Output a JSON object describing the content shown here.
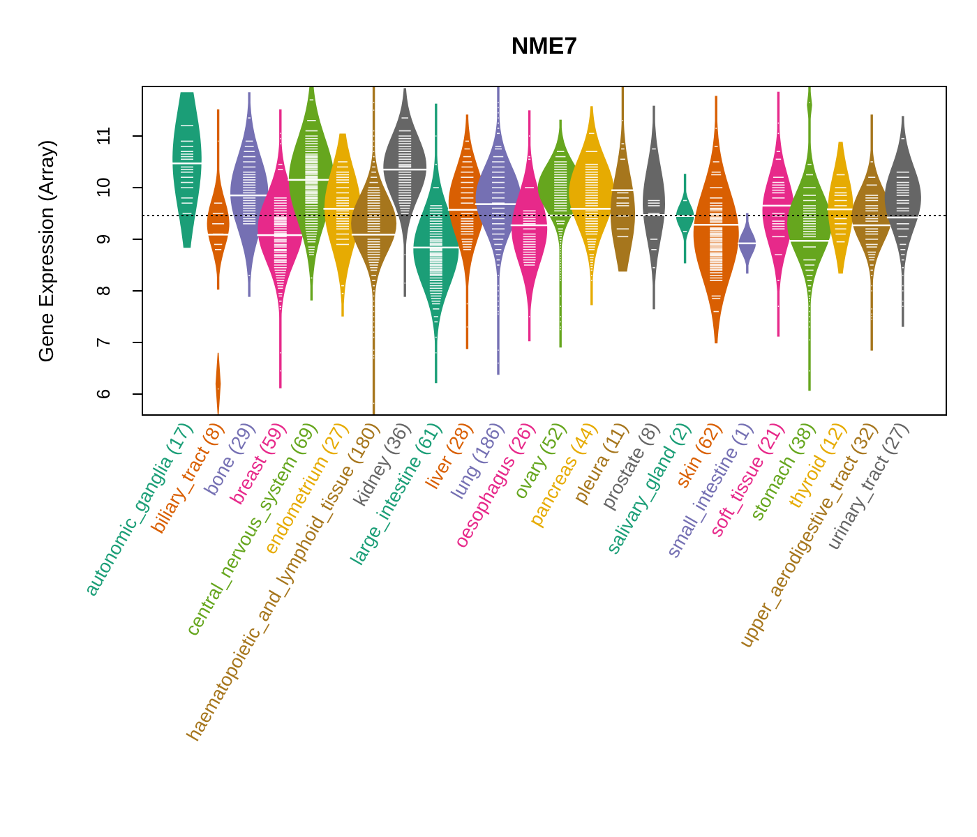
{
  "chart_data": {
    "type": "beanplot",
    "title": "NME7",
    "xlabel": "",
    "ylabel": "Gene Expression (Array)",
    "ylim": [
      5.6,
      12.0
    ],
    "yticks": [
      6,
      7,
      8,
      9,
      10,
      11
    ],
    "reference_line": 9.46,
    "grid": false,
    "legend": "none",
    "groups": [
      {
        "name": "autonomic_ganglia",
        "n": 17,
        "label": "autonomic_ganglia (17)",
        "color": "#1B9E77",
        "min": 8.84,
        "max": 11.84,
        "median": 10.47,
        "mode": 10.55,
        "spread": 1.0,
        "points": [
          11.2,
          10.9,
          10.8,
          10.7,
          10.65,
          10.55,
          10.47,
          10.4,
          10.35,
          10.3,
          9.8,
          9.7,
          9.5,
          10.2,
          10.1,
          10.0,
          10.6
        ]
      },
      {
        "name": "biliary_tract",
        "n": 8,
        "label": "biliary_tract (8)",
        "color": "#D95F02",
        "min": 8.03,
        "max": 11.51,
        "median": 9.09,
        "mode": 9.3,
        "spread": 0.45,
        "points": [
          10.9,
          9.7,
          9.5,
          9.3,
          9.1,
          8.9,
          8.8,
          6.1
        ],
        "extra_segment": [
          5.6,
          6.8
        ]
      },
      {
        "name": "bone",
        "n": 29,
        "label": "bone (29)",
        "color": "#7570B3",
        "min": 7.89,
        "max": 11.84,
        "median": 9.85,
        "mode": 9.9,
        "spread": 0.7,
        "points": [
          11.35,
          10.9,
          10.8,
          10.6,
          10.4,
          10.25,
          10.15,
          10.0,
          9.95,
          9.85,
          9.8,
          9.7,
          9.6,
          9.55,
          9.5,
          9.45,
          9.3,
          8.3,
          10.7,
          10.3,
          10.1,
          9.9,
          9.75,
          9.65,
          9.4,
          10.5,
          10.2,
          9.35,
          10.05
        ]
      },
      {
        "name": "breast",
        "n": 59,
        "label": "breast (59)",
        "color": "#E7298A",
        "min": 6.12,
        "max": 11.51,
        "median": 9.08,
        "mode": 9.2,
        "spread": 0.65,
        "points": [
          11.05,
          10.95,
          10.85,
          10.45,
          10.35,
          9.8,
          9.7,
          9.6,
          9.5,
          9.45,
          9.4,
          9.35,
          9.3,
          9.25,
          9.2,
          9.15,
          9.08,
          9.0,
          8.9,
          8.85,
          8.8,
          8.7,
          8.6,
          8.5,
          8.4,
          8.3,
          8.2,
          8.1,
          7.95,
          7.8,
          7.7,
          7.65,
          6.8,
          6.45,
          9.55,
          9.65,
          9.75,
          9.1,
          8.95,
          8.75,
          8.65,
          8.55,
          8.45,
          8.35,
          8.25,
          8.15,
          8.05,
          7.9,
          9.28,
          9.33,
          9.38,
          9.42,
          9.12,
          9.05,
          8.98,
          8.88,
          8.78,
          8.68,
          8.58
        ]
      },
      {
        "name": "central_nervous_system",
        "n": 69,
        "label": "central_nervous_system (69)",
        "color": "#66A61E",
        "min": 7.82,
        "max": 11.96,
        "median": 10.15,
        "mode": 10.15,
        "spread": 0.8,
        "points": [
          11.7,
          11.3,
          10.9,
          10.8,
          10.75,
          10.7,
          10.6,
          10.55,
          10.5,
          10.45,
          10.4,
          10.35,
          10.3,
          10.25,
          10.2,
          10.15,
          10.1,
          10.05,
          10.0,
          9.95,
          9.9,
          9.85,
          9.8,
          9.75,
          9.7,
          9.6,
          9.5,
          9.45,
          9.4,
          9.3,
          9.2,
          8.8,
          8.7,
          8.25,
          10.65,
          10.62,
          10.58,
          10.52,
          10.48,
          10.42,
          10.38,
          10.32,
          10.28,
          10.22,
          10.18,
          10.12,
          10.08,
          10.02,
          9.98,
          9.92,
          9.88,
          9.82,
          9.78,
          9.72,
          9.65,
          9.55,
          9.35,
          9.25,
          9.15,
          9.1,
          11.0,
          11.1,
          10.85,
          10.95,
          9.05,
          8.95,
          8.85,
          8.75,
          9.0
        ]
      },
      {
        "name": "endometrium",
        "n": 27,
        "label": "endometrium (27)",
        "color": "#E6AB02",
        "min": 7.51,
        "max": 11.04,
        "median": 9.59,
        "mode": 9.6,
        "spread": 0.75,
        "points": [
          10.5,
          10.4,
          10.3,
          10.2,
          10.1,
          10.0,
          9.9,
          9.8,
          9.75,
          9.7,
          9.59,
          9.5,
          9.45,
          9.4,
          9.35,
          9.3,
          9.2,
          9.1,
          9.0,
          8.9,
          8.1,
          7.95,
          10.25,
          10.15,
          9.65,
          9.55,
          9.25
        ]
      },
      {
        "name": "haematopoietic_and_lymphoid_tissue",
        "n": 180,
        "label": "haematopoietic_and_lymphoid_tissue (180)",
        "color": "#A6761D",
        "min": 5.6,
        "max": 11.96,
        "median": 9.09,
        "mode": 9.3,
        "spread": 0.55,
        "points": [
          11.65,
          11.5,
          11.1,
          11.0,
          10.9,
          10.8,
          10.7,
          10.6,
          10.5,
          10.4,
          10.3,
          10.2,
          10.1,
          10.0,
          9.95,
          9.9,
          9.85,
          9.8,
          9.75,
          9.7,
          9.65,
          9.6,
          9.55,
          9.5,
          9.45,
          9.4,
          9.35,
          9.3,
          9.25,
          9.2,
          9.15,
          9.09,
          9.0,
          8.95,
          8.9,
          8.85,
          8.8,
          8.75,
          8.7,
          8.65,
          8.6,
          8.55,
          8.5,
          8.45,
          8.4,
          8.3,
          8.2,
          8.1,
          8.0,
          7.9,
          7.8,
          7.7,
          7.6,
          7.5,
          7.4,
          7.3,
          7.2,
          7.1,
          6.85,
          6.75,
          6.7,
          5.82
        ]
      },
      {
        "name": "kidney",
        "n": 36,
        "label": "kidney (36)",
        "color": "#666666",
        "min": 7.89,
        "max": 11.92,
        "median": 10.35,
        "mode": 10.4,
        "spread": 0.6,
        "points": [
          11.35,
          11.1,
          11.0,
          10.9,
          10.85,
          10.8,
          10.7,
          10.6,
          10.55,
          10.5,
          10.45,
          10.4,
          10.35,
          10.3,
          10.25,
          10.2,
          10.1,
          10.05,
          10.0,
          9.95,
          9.9,
          9.85,
          9.8,
          9.75,
          9.7,
          9.6,
          9.5,
          8.7,
          8.15,
          10.65,
          10.75,
          10.15,
          9.65,
          9.55,
          10.95,
          10.42
        ]
      },
      {
        "name": "large_intestine",
        "n": 61,
        "label": "large_intestine (61)",
        "color": "#1B9E77",
        "min": 6.22,
        "max": 11.62,
        "median": 8.84,
        "mode": 8.8,
        "spread": 0.7,
        "points": [
          11.0,
          10.45,
          10.0,
          9.5,
          9.4,
          9.3,
          9.2,
          9.1,
          9.0,
          8.95,
          8.9,
          8.84,
          8.8,
          8.75,
          8.7,
          8.65,
          8.6,
          8.55,
          8.5,
          8.45,
          8.4,
          8.35,
          8.3,
          8.2,
          8.1,
          8.0,
          7.9,
          7.8,
          7.5,
          7.4,
          7.1,
          6.8,
          9.45,
          9.35,
          9.25,
          9.15,
          9.05,
          8.98,
          8.92,
          8.88,
          8.82,
          8.78,
          8.72,
          8.68,
          8.62,
          8.58,
          8.52,
          8.48,
          8.42,
          8.38,
          8.32,
          8.25,
          8.15,
          8.05,
          7.95,
          7.85,
          7.75,
          7.65,
          9.55,
          9.6,
          9.65
        ]
      },
      {
        "name": "liver",
        "n": 28,
        "label": "liver (28)",
        "color": "#D95F02",
        "min": 6.88,
        "max": 11.41,
        "median": 9.57,
        "mode": 9.7,
        "spread": 0.65,
        "points": [
          10.9,
          10.75,
          10.6,
          10.5,
          10.4,
          10.3,
          10.1,
          10.0,
          9.9,
          9.7,
          9.57,
          9.4,
          9.3,
          9.2,
          9.1,
          9.0,
          8.9,
          8.8,
          7.75,
          7.3,
          10.2,
          9.8,
          9.5,
          9.35,
          9.25,
          9.15,
          8.95,
          8.85
        ]
      },
      {
        "name": "lung",
        "n": 186,
        "label": "lung (186)",
        "color": "#7570B3",
        "min": 6.38,
        "max": 11.96,
        "median": 9.68,
        "mode": 9.8,
        "spread": 0.6,
        "points": [
          11.65,
          11.55,
          11.45,
          11.35,
          11.25,
          11.15,
          11.05,
          10.8,
          10.75,
          10.6,
          10.5,
          10.4,
          10.3,
          10.2,
          10.1,
          10.0,
          9.9,
          9.8,
          9.7,
          9.68,
          9.6,
          9.5,
          9.4,
          9.3,
          9.2,
          9.1,
          9.0,
          8.9,
          8.8,
          8.7,
          8.6,
          8.5,
          8.3,
          8.1,
          8.0,
          7.9,
          7.8,
          7.7,
          7.6,
          7.55,
          6.85,
          6.6
        ]
      },
      {
        "name": "oesophagus",
        "n": 26,
        "label": "oesophagus (26)",
        "color": "#E7298A",
        "min": 7.03,
        "max": 11.49,
        "median": 9.27,
        "mode": 9.2,
        "spread": 0.65,
        "points": [
          11.0,
          10.6,
          10.55,
          10.0,
          9.55,
          9.5,
          9.45,
          9.35,
          9.27,
          9.1,
          9.0,
          8.9,
          8.85,
          8.8,
          8.7,
          8.6,
          8.5,
          7.5,
          9.4,
          9.2,
          9.05,
          8.95,
          8.75,
          8.65,
          8.55,
          9.3
        ]
      },
      {
        "name": "ovary",
        "n": 52,
        "label": "ovary (52)",
        "color": "#66A61E",
        "min": 6.91,
        "max": 11.31,
        "median": 9.46,
        "mode": 10.0,
        "spread": 0.45,
        "points": [
          10.7,
          10.6,
          10.5,
          10.4,
          10.3,
          10.2,
          10.1,
          10.05,
          10.0,
          9.95,
          9.9,
          9.85,
          9.8,
          9.7,
          9.6,
          9.46,
          9.3,
          9.2,
          9.1,
          9.0,
          8.95,
          8.9,
          8.8,
          8.7,
          8.6,
          8.5,
          8.4,
          8.3,
          8.2,
          7.9,
          7.7,
          7.5,
          7.4,
          7.3,
          7.25,
          10.45,
          10.35,
          10.25,
          10.15,
          9.75,
          9.65,
          9.55,
          9.15,
          9.05,
          8.85,
          8.75,
          8.65,
          8.55,
          8.45,
          8.35,
          8.25,
          9.35
        ]
      },
      {
        "name": "pancreas",
        "n": 44,
        "label": "pancreas (44)",
        "color": "#E6AB02",
        "min": 7.73,
        "max": 11.57,
        "median": 9.59,
        "mode": 9.9,
        "spread": 0.65,
        "points": [
          11.05,
          10.7,
          10.45,
          10.35,
          10.3,
          10.2,
          10.1,
          10.0,
          9.9,
          9.8,
          9.75,
          9.7,
          9.59,
          9.5,
          9.45,
          9.4,
          9.35,
          9.3,
          9.2,
          9.1,
          9.0,
          8.9,
          8.8,
          8.7,
          8.6,
          8.55,
          8.5,
          8.4,
          8.3,
          8.2,
          10.4,
          10.25,
          10.15,
          10.05,
          9.95,
          9.85,
          9.65,
          9.55,
          9.25,
          9.15,
          8.95,
          8.85,
          8.65,
          8.45
        ]
      },
      {
        "name": "pleura",
        "n": 11,
        "label": "pleura (11)",
        "color": "#A6761D",
        "min": 8.38,
        "max": 11.96,
        "median": 9.95,
        "mode": 9.5,
        "spread": 0.75,
        "points": [
          11.3,
          10.85,
          10.75,
          10.55,
          9.9,
          9.8,
          9.7,
          9.45,
          9.2,
          9.05,
          9.65
        ]
      },
      {
        "name": "prostate",
        "n": 8,
        "label": "prostate (8)",
        "color": "#666666",
        "min": 7.65,
        "max": 11.58,
        "median": 9.47,
        "mode": 9.7,
        "spread": 0.7,
        "points": [
          10.75,
          9.75,
          9.7,
          9.65,
          9.0,
          8.8,
          8.45,
          9.5
        ]
      },
      {
        "name": "salivary_gland",
        "n": 2,
        "label": "salivary_gland (2)",
        "color": "#1B9E77",
        "min": 8.54,
        "max": 10.26,
        "median": 9.45,
        "mode": 9.45,
        "spread": 0.22,
        "points": [
          9.75,
          9.15
        ]
      },
      {
        "name": "skin",
        "n": 62,
        "label": "skin (62)",
        "color": "#D95F02",
        "min": 6.99,
        "max": 11.77,
        "median": 9.28,
        "mode": 9.1,
        "spread": 0.85,
        "points": [
          11.15,
          10.8,
          10.5,
          10.3,
          10.25,
          10.0,
          9.8,
          9.7,
          9.6,
          9.55,
          9.5,
          9.45,
          9.4,
          9.35,
          9.28,
          9.2,
          9.15,
          9.1,
          9.05,
          9.0,
          8.95,
          8.9,
          8.85,
          8.8,
          8.75,
          8.7,
          8.65,
          8.6,
          8.55,
          8.5,
          8.45,
          8.4,
          8.3,
          8.2,
          7.9,
          7.85,
          7.6,
          9.65,
          9.58,
          9.48,
          9.42,
          9.38,
          9.32,
          9.22,
          9.18,
          9.12,
          9.08,
          9.02,
          8.98,
          8.92,
          8.88,
          8.82,
          8.78,
          8.72,
          8.68,
          8.62,
          8.58,
          8.52,
          8.48,
          8.42,
          8.35,
          8.25
        ]
      },
      {
        "name": "small_intestine",
        "n": 1,
        "label": "small_intestine (1)",
        "color": "#7570B3",
        "min": 8.34,
        "max": 9.5,
        "median": 8.92,
        "mode": 8.92,
        "spread": 0.2,
        "points": [
          8.92
        ]
      },
      {
        "name": "soft_tissue",
        "n": 21,
        "label": "soft_tissue (21)",
        "color": "#E7298A",
        "min": 7.12,
        "max": 11.85,
        "median": 9.65,
        "mode": 9.55,
        "spread": 0.65,
        "points": [
          11.25,
          11.05,
          10.7,
          10.55,
          10.2,
          10.1,
          10.0,
          9.9,
          9.8,
          9.5,
          9.45,
          9.3,
          9.25,
          9.2,
          9.05,
          8.7,
          8.2,
          7.7,
          10.05,
          9.95,
          9.35
        ]
      },
      {
        "name": "stomach",
        "n": 38,
        "label": "stomach (38)",
        "color": "#66A61E",
        "min": 6.07,
        "max": 11.96,
        "median": 8.97,
        "mode": 9.3,
        "spread": 0.6,
        "points": [
          11.65,
          10.45,
          10.25,
          10.0,
          9.85,
          9.75,
          9.65,
          9.55,
          9.5,
          9.45,
          9.4,
          9.35,
          9.3,
          9.25,
          9.15,
          9.05,
          8.97,
          8.85,
          8.6,
          8.4,
          8.3,
          8.1,
          8.0,
          7.9,
          7.8,
          7.7,
          7.6,
          7.5,
          7.4,
          7.3,
          7.05,
          6.45,
          9.6,
          9.2,
          9.1,
          8.5,
          8.2,
          7.85
        ],
        "extra_segment": [
          11.24,
          11.96
        ]
      },
      {
        "name": "thyroid",
        "n": 12,
        "label": "thyroid (12)",
        "color": "#E6AB02",
        "min": 8.34,
        "max": 10.88,
        "median": 9.58,
        "mode": 9.6,
        "spread": 0.65,
        "points": [
          10.25,
          10.0,
          9.9,
          9.85,
          9.75,
          9.58,
          9.4,
          9.3,
          9.2,
          9.1,
          8.95,
          9.65
        ]
      },
      {
        "name": "upper_aerodigestive_tract",
        "n": 32,
        "label": "upper_aerodigestive_tract (32)",
        "color": "#A6761D",
        "min": 6.85,
        "max": 11.41,
        "median": 9.27,
        "mode": 9.45,
        "spread": 0.5,
        "points": [
          10.5,
          10.2,
          10.05,
          9.85,
          9.75,
          9.65,
          9.55,
          9.45,
          9.35,
          9.27,
          9.15,
          9.1,
          9.0,
          8.9,
          8.75,
          8.7,
          8.6,
          8.5,
          8.3,
          8.1,
          8.0,
          7.65,
          7.5,
          7.45,
          9.8,
          9.6,
          9.4,
          9.2,
          8.85,
          8.65,
          8.4,
          7.55
        ]
      },
      {
        "name": "urinary_tract",
        "n": 27,
        "label": "urinary_tract (27)",
        "color": "#666666",
        "min": 7.31,
        "max": 11.38,
        "median": 9.42,
        "mode": 9.8,
        "spread": 0.6,
        "points": [
          10.95,
          10.3,
          10.2,
          10.1,
          10.05,
          9.95,
          9.85,
          9.75,
          9.7,
          9.55,
          9.42,
          9.3,
          9.2,
          9.05,
          8.9,
          8.8,
          8.6,
          8.45,
          8.3,
          8.1,
          8.0,
          7.8,
          7.7,
          10.0,
          9.9,
          9.6,
          8.7
        ]
      }
    ]
  }
}
